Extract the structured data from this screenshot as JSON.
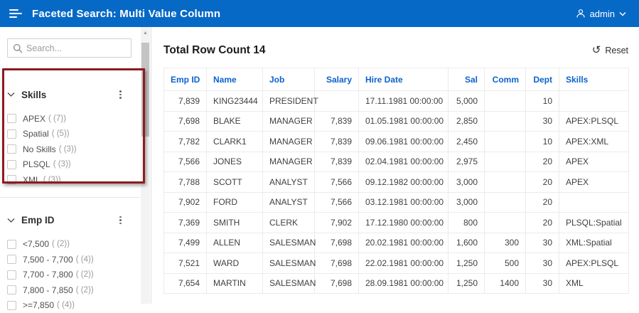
{
  "app": {
    "title": "Faceted Search: Multi Value Column",
    "user": "admin"
  },
  "icons": {
    "menu": "hamburger",
    "user": "person-outline",
    "chevron_down": "v-chevron",
    "search": "magnifier",
    "facet_menu": "vertical-dots",
    "reset": "↺",
    "scroll_up": "▲"
  },
  "colors": {
    "banner": "#0769c6",
    "header_link": "#0b62ce",
    "annotation_red": "#8e1b1e"
  },
  "sidebar": {
    "search": {
      "placeholder": "Search..."
    },
    "facets": [
      {
        "title": "Skills",
        "items": [
          {
            "label": "APEX",
            "count": "( (7))"
          },
          {
            "label": "Spatial",
            "count": "( (5))"
          },
          {
            "label": "No Skills",
            "count": "( (3))"
          },
          {
            "label": "PLSQL",
            "count": "( (3))"
          },
          {
            "label": "XML",
            "count": "( (3))"
          }
        ]
      },
      {
        "title": "Emp ID",
        "items": [
          {
            "label": "<7,500",
            "count": "( (2))"
          },
          {
            "label": "7,500 - 7,700",
            "count": "( (4))"
          },
          {
            "label": "7,700 - 7,800",
            "count": "( (2))"
          },
          {
            "label": "7,800 - 7,850",
            "count": "( (2))"
          },
          {
            "label": ">=7,850",
            "count": "( (4))"
          }
        ]
      }
    ]
  },
  "main": {
    "title": "Total Row Count 14",
    "reset_label": "Reset",
    "table": {
      "columns": [
        "Emp ID",
        "Name",
        "Job",
        "Salary",
        "Hire Date",
        "Sal",
        "Comm",
        "Dept",
        "Skills"
      ],
      "rows": [
        [
          "7,839",
          "KING23444",
          "PRESIDENT",
          "",
          "17.11.1981 00:00:00",
          "5,000",
          "",
          "10",
          ""
        ],
        [
          "7,698",
          "BLAKE",
          "MANAGER",
          "7,839",
          "01.05.1981 00:00:00",
          "2,850",
          "",
          "30",
          "APEX:PLSQL"
        ],
        [
          "7,782",
          "CLARK1",
          "MANAGER",
          "7,839",
          "09.06.1981 00:00:00",
          "2,450",
          "",
          "10",
          "APEX:XML"
        ],
        [
          "7,566",
          "JONES",
          "MANAGER",
          "7,839",
          "02.04.1981 00:00:00",
          "2,975",
          "",
          "20",
          "APEX"
        ],
        [
          "7,788",
          "SCOTT",
          "ANALYST",
          "7,566",
          "09.12.1982 00:00:00",
          "3,000",
          "",
          "20",
          "APEX"
        ],
        [
          "7,902",
          "FORD",
          "ANALYST",
          "7,566",
          "03.12.1981 00:00:00",
          "3,000",
          "",
          "20",
          ""
        ],
        [
          "7,369",
          "SMITH",
          "CLERK",
          "7,902",
          "17.12.1980 00:00:00",
          "800",
          "",
          "20",
          "PLSQL:Spatial"
        ],
        [
          "7,499",
          "ALLEN",
          "SALESMAN",
          "7,698",
          "20.02.1981 00:00:00",
          "1,600",
          "300",
          "30",
          "XML:Spatial"
        ],
        [
          "7,521",
          "WARD",
          "SALESMAN",
          "7,698",
          "22.02.1981 00:00:00",
          "1,250",
          "500",
          "30",
          "APEX:PLSQL"
        ],
        [
          "7,654",
          "MARTIN",
          "SALESMAN",
          "7,698",
          "28.09.1981 00:00:00",
          "1,250",
          "1400",
          "30",
          "XML"
        ]
      ]
    }
  }
}
